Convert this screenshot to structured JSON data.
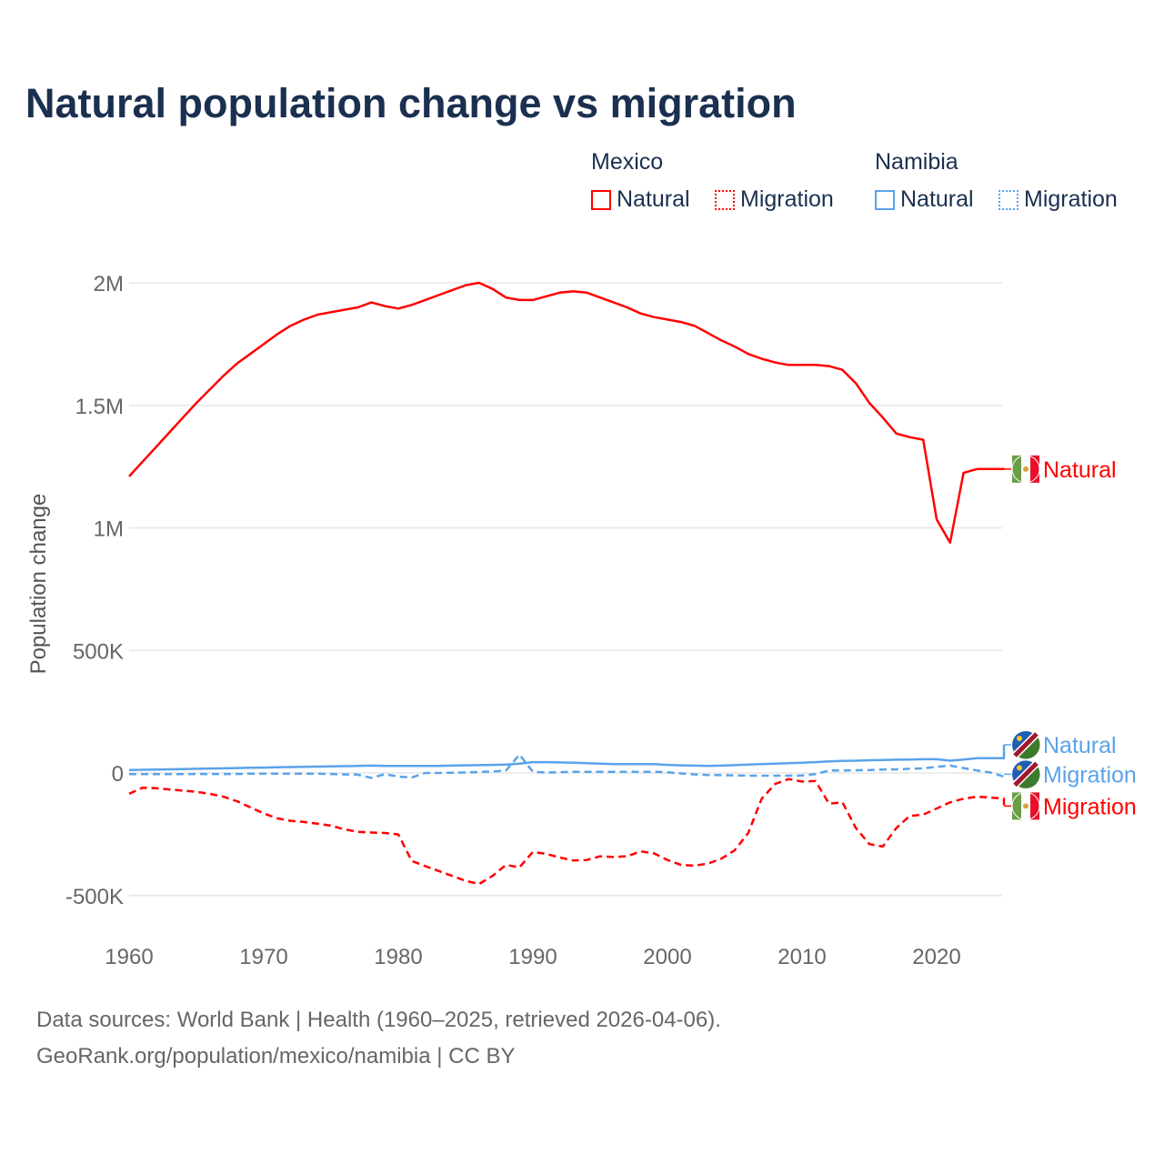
{
  "chart_data": {
    "type": "line",
    "title": "Natural population change vs migration",
    "ylabel": "Population change",
    "xlabel": "",
    "ylim": [
      -550000,
      2100000
    ],
    "xlim": [
      1960,
      2025
    ],
    "grid": true,
    "yticks": [
      {
        "v": 2000000,
        "label": "2M"
      },
      {
        "v": 1500000,
        "label": "1.5M"
      },
      {
        "v": 1000000,
        "label": "1M"
      },
      {
        "v": 500000,
        "label": "500K"
      },
      {
        "v": 0,
        "label": "0"
      },
      {
        "v": -500000,
        "label": "-500K"
      }
    ],
    "xticks": [
      1960,
      1970,
      1980,
      1990,
      2000,
      2010,
      2020
    ],
    "legend": {
      "placement": "top-right",
      "groups": [
        {
          "country": "Mexico",
          "items": [
            "Natural",
            "Migration"
          ],
          "color": "#ff0000"
        },
        {
          "country": "Namibia",
          "items": [
            "Natural",
            "Migration"
          ],
          "color": "#5aa3e8"
        }
      ]
    },
    "start_year": 1960,
    "series": [
      {
        "name": "Natural",
        "country": "Mexico",
        "color": "#ff0000",
        "dash": false,
        "end_label": "Natural",
        "label_value": 1240000,
        "values": [
          1210000,
          1270000,
          1330000,
          1390000,
          1450000,
          1510000,
          1565000,
          1620000,
          1670000,
          1710000,
          1750000,
          1790000,
          1825000,
          1850000,
          1870000,
          1880000,
          1890000,
          1900000,
          1920000,
          1905000,
          1895000,
          1910000,
          1930000,
          1950000,
          1970000,
          1990000,
          2000000,
          1975000,
          1940000,
          1930000,
          1930000,
          1945000,
          1960000,
          1965000,
          1960000,
          1940000,
          1920000,
          1900000,
          1875000,
          1860000,
          1850000,
          1840000,
          1825000,
          1795000,
          1765000,
          1740000,
          1710000,
          1690000,
          1675000,
          1665000,
          1665000,
          1665000,
          1660000,
          1645000,
          1590000,
          1510000,
          1450000,
          1385000,
          1370000,
          1360000,
          1035000,
          940000,
          1225000,
          1240000,
          1240000,
          1240000
        ]
      },
      {
        "name": "Migration",
        "country": "Mexico",
        "color": "#ff0000",
        "dash": true,
        "end_label": "Migration",
        "label_value": -135000,
        "values": [
          -85000,
          -60000,
          -62000,
          -67000,
          -72000,
          -77000,
          -85000,
          -97000,
          -115000,
          -140000,
          -165000,
          -185000,
          -195000,
          -200000,
          -207000,
          -215000,
          -230000,
          -240000,
          -243000,
          -245000,
          -251000,
          -359000,
          -380000,
          -400000,
          -420000,
          -440000,
          -453000,
          -420000,
          -375000,
          -385000,
          -322000,
          -330000,
          -345000,
          -357000,
          -355000,
          -340000,
          -343000,
          -340000,
          -320000,
          -328000,
          -355000,
          -375000,
          -378000,
          -370000,
          -350000,
          -315000,
          -245000,
          -105000,
          -45000,
          -25000,
          -35000,
          -33000,
          -125000,
          -120000,
          -225000,
          -290000,
          -300000,
          -225000,
          -175000,
          -170000,
          -145000,
          -120000,
          -105000,
          -97000,
          -100000,
          -105000
        ]
      },
      {
        "name": "Natural",
        "country": "Namibia",
        "color": "#5aa3e8",
        "dash": false,
        "end_label": "Natural",
        "label_value": 115000,
        "values": [
          12000,
          13000,
          14000,
          15000,
          16000,
          17000,
          18000,
          19000,
          20000,
          21000,
          22000,
          23000,
          24000,
          25000,
          26000,
          27000,
          28000,
          29000,
          30000,
          29000,
          29000,
          28500,
          28500,
          29000,
          30000,
          31000,
          32000,
          33000,
          34000,
          38000,
          44000,
          44000,
          43000,
          42000,
          40000,
          38000,
          36000,
          36000,
          36000,
          36000,
          33000,
          31000,
          30000,
          29000,
          30000,
          32000,
          34000,
          36000,
          38000,
          40000,
          42000,
          44000,
          47000,
          49000,
          50000,
          52000,
          53000,
          54000,
          55000,
          56000,
          56000,
          50000,
          55000,
          60000,
          60000,
          60000
        ]
      },
      {
        "name": "Migration",
        "country": "Namibia",
        "color": "#5aa3e8",
        "dash": true,
        "end_label": "Migration",
        "label_value": -5000,
        "values": [
          -5000,
          -5000,
          -5000,
          -5000,
          -5000,
          -4000,
          -4000,
          -4000,
          -4000,
          -3000,
          -3000,
          -3000,
          -3000,
          -3000,
          -3000,
          -4000,
          -6000,
          -7000,
          -20000,
          -5000,
          -15000,
          -18000,
          0,
          0,
          1000,
          2000,
          4000,
          6000,
          10000,
          75000,
          5000,
          2000,
          3000,
          5000,
          5000,
          5000,
          5000,
          5000,
          5000,
          5000,
          3000,
          -2000,
          -6000,
          -8000,
          -9000,
          -10000,
          -11000,
          -11000,
          -11000,
          -11000,
          -10000,
          -5000,
          10000,
          10000,
          11000,
          12000,
          14000,
          15000,
          17000,
          19000,
          25000,
          30000,
          20000,
          10000,
          2000,
          -15000
        ]
      }
    ]
  },
  "footer": {
    "line1": "Data sources: World Bank | Health (1960–2025, retrieved 2026-04-06).",
    "line2": "GeoRank.org/population/mexico/namibia | CC BY"
  }
}
